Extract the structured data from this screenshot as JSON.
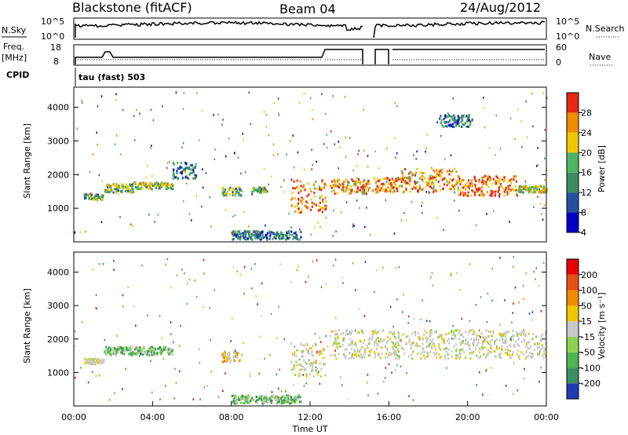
{
  "header": {
    "station": "Blackstone (fitACF)",
    "beam": "Beam 04",
    "date": "24/Aug/2012"
  },
  "top_panels": {
    "nsky_label": "N.Sky",
    "nsky_ticks": [
      "10^5",
      "10^0"
    ],
    "nsearch_label": "N.Search",
    "nsearch_ticks": [
      "10^5",
      "10^0"
    ],
    "freq_label": "Freq.",
    "freq_unit": "[MHz]",
    "freq_ticks": [
      "18",
      "8"
    ],
    "nave_label": "Nave",
    "nave_ticks": [
      "60",
      "0"
    ],
    "cpid_label": "CPID",
    "cpid_value": "tau (fast) 503"
  },
  "chart_data": [
    {
      "type": "heatmap",
      "name": "power",
      "ylabel": "Slant Range [km]",
      "ylim": [
        0,
        4600
      ],
      "yticks": [
        "4000",
        "3000",
        "2000",
        "1000"
      ],
      "xlim_hours": [
        0,
        24
      ],
      "colorbar_label": "Power [dB]",
      "colorbar_ticks": [
        "28",
        "24",
        "20",
        "16",
        "12",
        "8",
        "4"
      ],
      "colorbar_colors": [
        "#0000c8",
        "#2850a0",
        "#3c8c64",
        "#50b464",
        "#f0c800",
        "#f08c00",
        "#e62814"
      ],
      "features": [
        {
          "t": [
            0.5,
            1.5
          ],
          "range": [
            1280,
            1450
          ],
          "level": 0.45
        },
        {
          "t": [
            1.5,
            3.0
          ],
          "range": [
            1500,
            1750
          ],
          "level": 0.5
        },
        {
          "t": [
            3.0,
            5.0
          ],
          "range": [
            1600,
            1800
          ],
          "level": 0.55
        },
        {
          "t": [
            5.0,
            6.2
          ],
          "range": [
            1900,
            2400
          ],
          "level": 0.35
        },
        {
          "t": [
            7.5,
            8.5
          ],
          "range": [
            1400,
            1650
          ],
          "level": 0.45
        },
        {
          "t": [
            9.0,
            9.8
          ],
          "range": [
            1500,
            1650
          ],
          "level": 0.5
        },
        {
          "t": [
            11.0,
            12.8
          ],
          "range": [
            900,
            1900
          ],
          "level": 0.8
        },
        {
          "t": [
            13.0,
            15.0
          ],
          "range": [
            1450,
            1900
          ],
          "level": 0.75
        },
        {
          "t": [
            15.2,
            16.5
          ],
          "range": [
            1500,
            1950
          ],
          "level": 0.8
        },
        {
          "t": [
            16.5,
            19.5
          ],
          "range": [
            1500,
            2200
          ],
          "level": 0.75
        },
        {
          "t": [
            19.5,
            22.5
          ],
          "range": [
            1400,
            2000
          ],
          "level": 0.85
        },
        {
          "t": [
            22.5,
            24.0
          ],
          "range": [
            1500,
            1700
          ],
          "level": 0.6
        },
        {
          "t": [
            18.5,
            20.2
          ],
          "range": [
            3450,
            3800
          ],
          "level": 0.3
        },
        {
          "t": [
            8.0,
            11.5
          ],
          "range": [
            100,
            350
          ],
          "level": 0.3
        }
      ]
    },
    {
      "type": "heatmap",
      "name": "velocity",
      "ylabel": "Slant Range [km]",
      "ylim": [
        0,
        4600
      ],
      "yticks": [
        "4000",
        "3000",
        "2000",
        "1000"
      ],
      "xlim_hours": [
        0,
        24
      ],
      "xticks": [
        "00:00",
        "04:00",
        "08:00",
        "12:00",
        "16:00",
        "20:00",
        "00:00"
      ],
      "xlabel": "Time UT",
      "colorbar_label": "Velocity [m s⁻¹]",
      "colorbar_ticks": [
        "200",
        "100",
        "50",
        "15",
        "-15",
        "-50",
        "-100",
        "-200"
      ],
      "colorbar_colors": [
        "#1e3cb4",
        "#3c8c64",
        "#50b450",
        "#8cd250",
        "#c8c8c8",
        "#f0c800",
        "#f08c00",
        "#e65014",
        "#e60000"
      ],
      "features": [
        {
          "t": [
            0.5,
            1.5
          ],
          "range": [
            1280,
            1450
          ],
          "class": "gray"
        },
        {
          "t": [
            1.5,
            5.0
          ],
          "range": [
            1550,
            1800
          ],
          "class": "green"
        },
        {
          "t": [
            7.5,
            8.5
          ],
          "range": [
            1300,
            1650
          ],
          "class": "orange"
        },
        {
          "t": [
            11.0,
            12.8
          ],
          "range": [
            900,
            1900
          ],
          "class": "gray"
        },
        {
          "t": [
            13.0,
            24.0
          ],
          "range": [
            1450,
            2300
          ],
          "class": "gray"
        },
        {
          "t": [
            8.0,
            11.5
          ],
          "range": [
            100,
            350
          ],
          "class": "green"
        }
      ]
    }
  ]
}
